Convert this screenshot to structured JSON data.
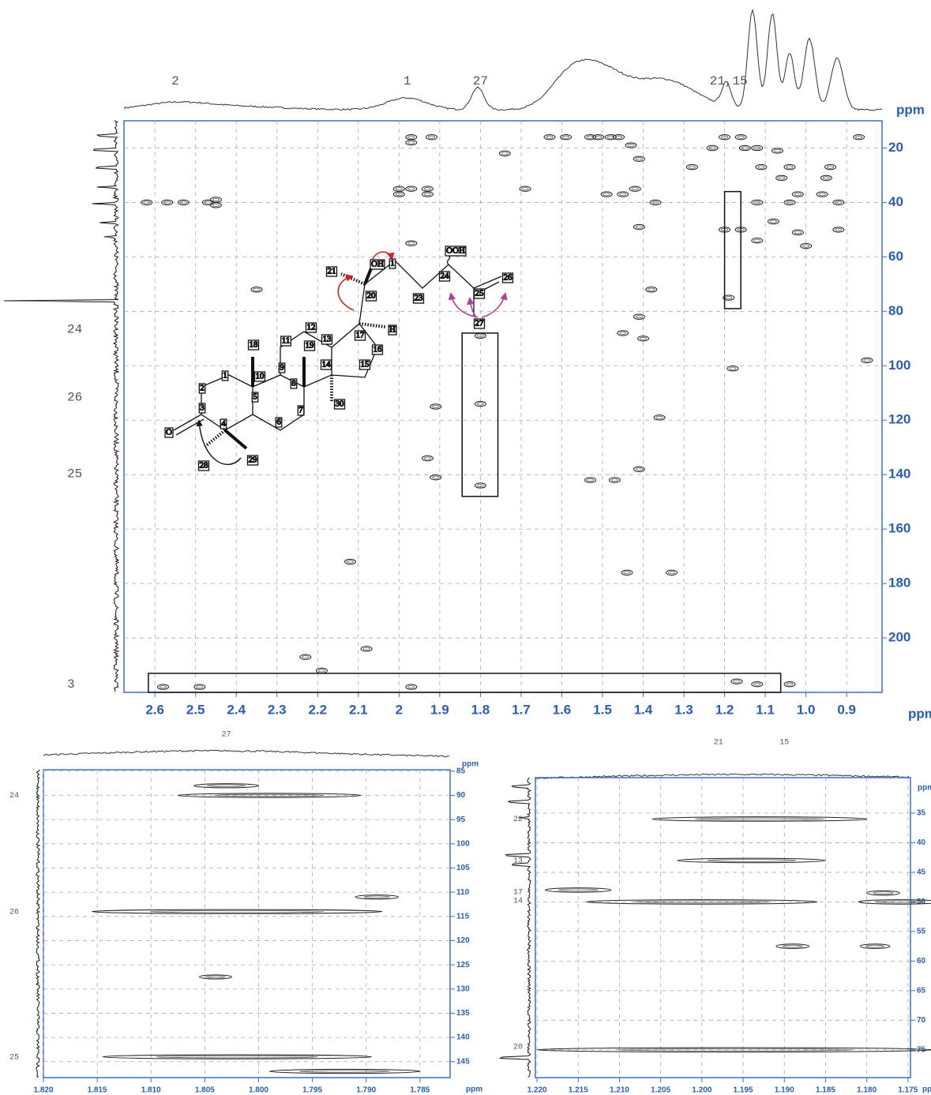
{
  "chart_data": [
    {
      "type": "contour",
      "x_label": "ppm",
      "y_label": "ppm",
      "xlim": [
        2.676,
        0.813
      ],
      "ylim": [
        10,
        220
      ],
      "xticks": [
        2.6,
        2.5,
        2.4,
        2.3,
        2.2,
        2.1,
        2.0,
        1.9,
        1.8,
        1.7,
        1.6,
        1.5,
        1.4,
        1.3,
        1.2,
        1.1,
        {
          "value": 1,
          "label": "1.0"
        },
        0.9
      ],
      "yticks": [
        20,
        40,
        60,
        80,
        100,
        120,
        140,
        160,
        180,
        200
      ],
      "grid": true,
      "top_labels": [
        {
          "label": "2",
          "x": 2.55
        },
        {
          "label": "1",
          "x": 1.98
        },
        {
          "label": "27",
          "x": 1.8
        },
        {
          "label": "21,15",
          "x": 1.19
        }
      ],
      "left_labels": [
        {
          "label": "24",
          "y": 86.7
        },
        {
          "label": "26",
          "y": 111.6
        },
        {
          "label": "25",
          "y": 139.7
        },
        {
          "label": "3",
          "y": 217
        }
      ],
      "peaks": {
        "x": [
          2.62,
          2.57,
          2.53,
          2.47,
          2.45,
          2.45,
          1.97,
          1.97,
          1.92,
          2.0,
          1.97,
          1.93,
          2.0,
          1.93,
          1.97,
          2.35,
          1.63,
          1.59,
          1.53,
          1.51,
          1.48,
          1.46,
          1.43,
          1.41,
          1.42,
          1.45,
          1.49,
          1.41,
          1.37,
          1.38,
          1.41,
          1.4,
          1.45,
          1.41,
          1.47,
          1.53,
          1.44,
          1.33,
          2.12,
          2.08,
          2.23,
          2.19,
          0.87,
          1.16,
          1.2,
          1.15,
          1.12,
          1.07,
          1.23,
          1.28,
          1.11,
          1.04,
          1.06,
          0.95,
          0.94,
          1.02,
          0.96,
          1.04,
          0.92,
          1.12,
          1.08,
          1.16,
          1.2,
          1.02,
          0.92,
          1.12,
          1.0,
          1.19,
          1.8,
          1.8,
          1.8,
          0.85,
          1.91,
          1.93,
          1.91,
          1.36,
          1.18,
          1.17,
          1.12,
          1.04,
          2.58,
          2.49,
          1.97,
          1.69,
          1.74
        ],
        "y": [
          40,
          40,
          40,
          40,
          39,
          41,
          16,
          18,
          16,
          35,
          35,
          35,
          37,
          37,
          55,
          72,
          16,
          16,
          16,
          16,
          16,
          16,
          19,
          24,
          35,
          37,
          37,
          49,
          40,
          72,
          82,
          90,
          88,
          138,
          142,
          142,
          176,
          176,
          172,
          204,
          207,
          212,
          16,
          16,
          16,
          20,
          20,
          21,
          20,
          27,
          27,
          27,
          31,
          31,
          27,
          37,
          37,
          40,
          40,
          40,
          47,
          50,
          50,
          51,
          50,
          54,
          56,
          75,
          89,
          114,
          144,
          98,
          115,
          134,
          141,
          119,
          101,
          216,
          217,
          217,
          218,
          218,
          218,
          35,
          22
        ]
      },
      "boxes": [
        {
          "x": [
            1.2,
            1.16
          ],
          "y": [
            36,
            79
          ]
        },
        {
          "x": [
            1.845,
            1.757
          ],
          "y": [
            88,
            148
          ]
        },
        {
          "x": [
            2.616,
            1.062
          ],
          "y": [
            213,
            220
          ]
        }
      ]
    },
    {
      "type": "contour",
      "x_label": "ppm",
      "y_label": "ppm",
      "xlim": [
        1.82,
        1.7822
      ],
      "ylim": [
        84.7,
        148.3
      ],
      "xticks": [
        {
          "value": 1.82,
          "label": "1.820"
        },
        1.815,
        {
          "value": 1.81,
          "label": "1.810"
        },
        1.805,
        {
          "value": 1.8,
          "label": "1.800"
        },
        1.795,
        {
          "value": 1.79,
          "label": "1.790"
        },
        1.785
      ],
      "yticks": [
        85,
        90,
        95,
        100,
        105,
        110,
        115,
        120,
        125,
        130,
        135,
        140,
        145
      ],
      "grid": true,
      "top_labels": [
        {
          "label": "27",
          "x": 1.803
        }
      ],
      "left_labels": [
        {
          "label": "24",
          "y": 90
        },
        {
          "label": "26",
          "y": 114
        },
        {
          "label": "25",
          "y": 144
        }
      ],
      "peaks": {
        "x": [
          1.803,
          1.799,
          1.789,
          1.802,
          1.804,
          1.802,
          1.792
        ],
        "y": [
          88,
          90,
          111,
          114,
          127.5,
          144,
          147
        ],
        "dx": [
          0.003,
          0.0085,
          0.002,
          0.0135,
          0.0015,
          0.0125,
          0.007
        ]
      }
    },
    {
      "type": "contour",
      "x_label": "ppm",
      "y_label": "ppm",
      "xlim": [
        1.2202,
        1.1747
      ],
      "ylim": [
        29,
        79.7
      ],
      "xticks": [
        {
          "value": 1.22,
          "label": "1.220"
        },
        1.215,
        {
          "value": 1.21,
          "label": "1.210"
        },
        1.205,
        {
          "value": 1.2,
          "label": "1.200"
        },
        1.195,
        {
          "value": 1.19,
          "label": "1.190"
        },
        1.185,
        {
          "value": 1.18,
          "label": "1.180"
        },
        1.175
      ],
      "yticks": [
        35,
        40,
        45,
        50,
        55,
        60,
        65,
        70,
        75
      ],
      "grid": true,
      "top_labels": [
        {
          "label": "21",
          "x": 1.198
        },
        {
          "label": "15",
          "x": 1.19
        }
      ],
      "left_labels": [
        {
          "label": "22",
          "y": 36
        },
        {
          "label": "13",
          "y": 43
        },
        {
          "label": "17",
          "y": 48.3
        },
        {
          "label": "14",
          "y": 49.8
        },
        {
          "label": "20",
          "y": 74.5
        }
      ],
      "peaks": {
        "x": [
          1.193,
          1.194,
          1.215,
          1.2,
          1.178,
          1.176,
          1.189,
          1.179,
          1.196
        ],
        "y": [
          36,
          43,
          48,
          50,
          48.5,
          50,
          57.5,
          57.5,
          75
        ],
        "dx": [
          0.013,
          0.009,
          0.004,
          0.014,
          0.002,
          0.005,
          0.002,
          0.0018,
          0.024
        ]
      }
    }
  ],
  "structure": {
    "labels": [
      "OH",
      "1",
      "OOH",
      "21",
      "20",
      "23",
      "24",
      "25",
      "26",
      "27",
      "H",
      "17",
      "16",
      "15",
      "13",
      "12",
      "11",
      "14",
      "19",
      "18",
      "1",
      "2",
      "3",
      "4",
      "5",
      "6",
      "7",
      "8",
      "9",
      "10",
      "30",
      "28",
      "29",
      "O"
    ]
  }
}
